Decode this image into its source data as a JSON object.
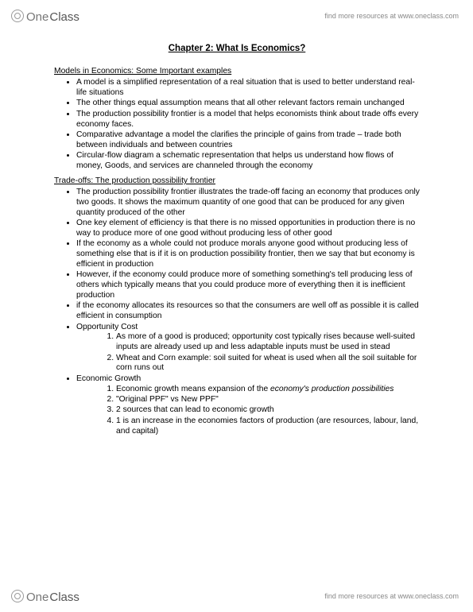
{
  "brand": {
    "part1": "One",
    "part2": "Class",
    "tagline": "find more resources at www.oneclass.com"
  },
  "title": "Chapter 2: What Is Economics?",
  "sec1": {
    "head": "Models in Economics: Some Important examples",
    "b1": "A model is a simplified representation of a real situation that is used to better understand real-life situations",
    "b2": "The other things equal assumption means that all other relevant factors remain unchanged",
    "b3": "The production possibility frontier is a model that helps economists think about trade offs every economy faces.",
    "b4": "Comparative advantage a model the clarifies the principle of gains from trade – trade both between individuals and between countries",
    "b5": "Circular-flow diagram a schematic representation that helps us understand how flows of money, Goods, and services are channeled through the economy"
  },
  "sec2": {
    "head": "Trade-offs: The production possibility frontier",
    "b1": "The production possibility frontier illustrates the trade-off facing an economy that produces only two goods. It shows the maximum quantity of one good that can be produced for any given quantity produced of the other",
    "b2": "One key element of efficiency is that there is no missed opportunities in production there is no way to produce more of one good without producing less of other good",
    "b3": " If the economy as a whole could not produce morals anyone good without producing less of something else that is if it is on production possibility frontier, then we say that but economy is efficient in production",
    "b4": " However, if the economy could produce more of something something's tell producing less of others which typically means that you could produce more of everything then it is inefficient production",
    "b5": "if the economy allocates its resources so that the consumers are well off as possible it is called efficient in consumption",
    "b6": "Opportunity Cost",
    "oc1": "As more of a good is produced; opportunity cost typically rises because well-suited inputs are already used up and less adaptable inputs must be used in stead",
    "oc2": "Wheat and Corn example: soil suited for wheat is used when all the soil suitable for corn runs out",
    "b7": "Economic Growth",
    "eg1a": "Economic growth means expansion of the ",
    "eg1b": "economy's production possibilities",
    "eg2": "\"Original PPF\" vs New PPF\"",
    "eg3": "2 sources that can lead to economic growth",
    "eg4": "1 is an increase in the economies factors of production (are resources, labour, land, and capital)"
  }
}
